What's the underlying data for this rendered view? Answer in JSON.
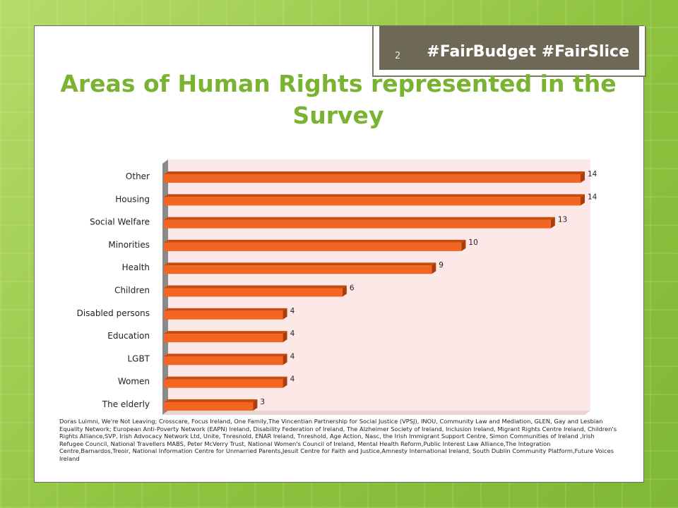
{
  "header": {
    "slide_number": "2",
    "hashtag": "#FairBudget #FairSlice"
  },
  "title": "Areas of Human Rights represented in the Survey",
  "chart_data": {
    "type": "bar",
    "orientation": "horizontal",
    "categories": [
      "Other",
      "Housing",
      "Social Welfare",
      "Minorities",
      "Health",
      "Children",
      "Disabled persons",
      "Education",
      "LGBT",
      "Women",
      "The elderly"
    ],
    "values": [
      14,
      14,
      13,
      10,
      9,
      6,
      4,
      4,
      4,
      4,
      3
    ],
    "xlim": [
      0,
      14
    ],
    "grid": false,
    "legend": "none",
    "style": "3d",
    "colors": {
      "bar": "#f26522",
      "bar_top": "#c84a0e",
      "plot_bg": "#fde8e8",
      "wall": "#8a8a8a"
    }
  },
  "sources": "Doras Luimni, We're Not Leaving; Crosscare, Focus Ireland, One Family,The Vincentian Partnership for Social Justice (VPSJ), INOU, Community Law and Mediation, GLEN, Gay and Lesbian Equality Network; European Anti-Poverty Network (EAPN) Ireland, Disability Federation of Ireland, The Alzheimer Society of Ireland, Inclusion Ireland, Migrant Rights Centre Ireland, Children's Rights Alliance,SVP, Irish Advocacy Network Ltd, Unite, Tnresnold, ENAR Ireland, Tnreshold, Age Action, Nasc, the Irish Immigrant Support Centre, Simon Communities of Ireland ,Irish Refugee Council, National Travellers MABS, Peter McVerry Trust, National Women's Council of Ireland, Mental Health Reform,Public Interest Law Alliance,The Integration Centre,Barnardos,Treoir, National Information Centre for Unmarried Parents,Jesuit Centre for Faith and Justice,Amnesty International Ireland, South Dublin Community Platform,Future Voices Ireland"
}
